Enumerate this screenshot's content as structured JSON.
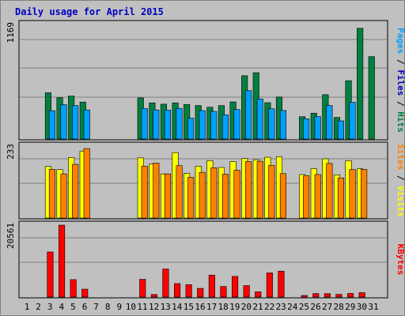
{
  "chart_data": {
    "title": "Daily usage for April 2015",
    "type": "bar",
    "categories": [
      "1",
      "2",
      "3",
      "4",
      "5",
      "6",
      "7",
      "8",
      "9",
      "10",
      "11",
      "12",
      "13",
      "14",
      "15",
      "16",
      "17",
      "18",
      "19",
      "20",
      "21",
      "22",
      "23",
      "24",
      "25",
      "26",
      "27",
      "28",
      "29",
      "30",
      "31"
    ],
    "weekend_days": [
      "4",
      "5",
      "11",
      "12",
      "18",
      "19",
      "25",
      "26"
    ],
    "colors": {
      "background": "#c0c0c0",
      "grid": "#808080",
      "pages": "#008040",
      "files": "#00a0ff",
      "hits": "#00a090",
      "visits": "#ffff00",
      "sites": "#ff8000",
      "kbytes": "#ff0000",
      "weekday_label": "#000000",
      "weekend_label": "#008040",
      "title": "#0000c0"
    },
    "panels": [
      {
        "id": "pages_files_hits",
        "max_label": "1169",
        "ymax": 1169,
        "side_labels": [
          {
            "text": "Pages",
            "color": "#00a0ff"
          },
          {
            "text": " / ",
            "color": "#000000"
          },
          {
            "text": "Files",
            "color": "#0000c0"
          },
          {
            "text": " / ",
            "color": "#000000"
          },
          {
            "text": "Hits",
            "color": "#008040"
          }
        ],
        "series": [
          {
            "key": "pages",
            "values": [
              0,
              0,
              472,
              422,
              439,
              377,
              0,
              0,
              0,
              0,
              420,
              369,
              356,
              369,
              353,
              342,
              325,
              341,
              379,
              646,
              677,
              371,
              429,
              0,
              228,
              264,
              453,
              221,
              595,
              1130,
              841
            ]
          },
          {
            "key": "files",
            "values": [
              0,
              0,
              289,
              351,
              342,
              297,
              0,
              0,
              0,
              0,
              312,
              297,
              296,
              313,
              213,
              290,
              282,
              248,
              301,
              494,
              409,
              309,
              291,
              0,
              206,
              229,
              342,
              185,
              375,
              0,
              0
            ]
          }
        ]
      },
      {
        "id": "visits_sites",
        "max_label": "233",
        "ymax": 233,
        "side_labels": [
          {
            "text": "Sites",
            "color": "#ff8000"
          },
          {
            "text": " / ",
            "color": "#000000"
          },
          {
            "text": "Visits",
            "color": "#ffff00"
          }
        ],
        "series": [
          {
            "key": "visits",
            "values": [
              0,
              0,
              167,
              157,
              196,
              217,
              0,
              0,
              0,
              0,
              195,
              175,
              143,
              212,
              145,
              168,
              186,
              164,
              183,
              193,
              189,
              197,
              199,
              0,
              141,
              160,
              192,
              140,
              186,
              160,
              0
            ]
          },
          {
            "key": "sites",
            "values": [
              0,
              0,
              158,
              143,
              174,
              225,
              0,
              0,
              0,
              0,
              168,
              178,
              143,
              170,
              132,
              148,
              163,
              142,
              155,
              183,
              184,
              171,
              144,
              0,
              137,
              141,
              177,
              130,
              157,
              158,
              0
            ]
          }
        ]
      },
      {
        "id": "kbytes",
        "max_label": "20561",
        "ymax": 20561,
        "side_labels": [
          {
            "text": "KBytes",
            "color": "#ff0000"
          }
        ],
        "series": [
          {
            "key": "kbytes",
            "values": [
              0,
              0,
              12885,
              20561,
              4979,
              2251,
              0,
              0,
              0,
              0,
              5066,
              727,
              8022,
              3853,
              3530,
              2473,
              6279,
              3014,
              5903,
              3275,
              1508,
              6903,
              7407,
              0,
              374,
              997,
              961,
              771,
              1031,
              1254,
              0
            ]
          }
        ]
      }
    ]
  }
}
